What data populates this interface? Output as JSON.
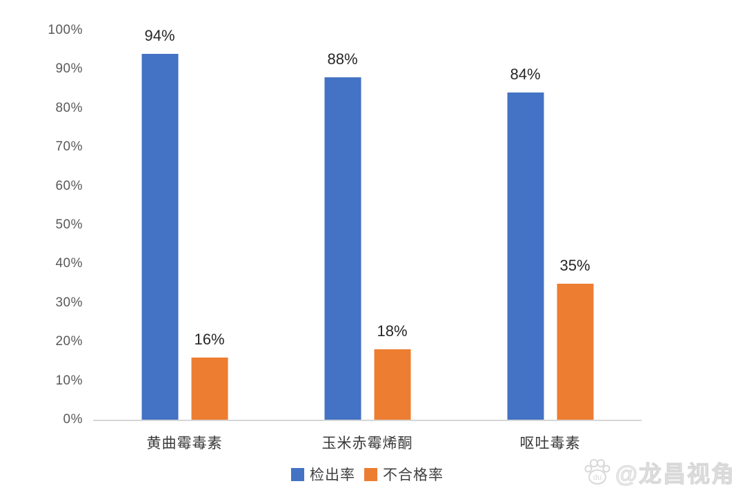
{
  "chart_data": {
    "type": "bar",
    "title": "",
    "xlabel": "",
    "ylabel": "",
    "categories": [
      "黄曲霉毒素",
      "玉米赤霉烯酮",
      "呕吐毒素"
    ],
    "series": [
      {
        "name": "检出率",
        "color": "#4472C4",
        "values": [
          94,
          88,
          84
        ]
      },
      {
        "name": "不合格率",
        "color": "#ED7D31",
        "values": [
          16,
          18,
          35
        ]
      }
    ],
    "value_label_format": "percent",
    "ylim": [
      0,
      100
    ],
    "y_ticks": [
      "0%",
      "10%",
      "20%",
      "30%",
      "40%",
      "50%",
      "60%",
      "70%",
      "80%",
      "90%",
      "100%"
    ],
    "grid": false,
    "legend_position": "bottom"
  },
  "watermark": {
    "icon": "baidu-paw-icon",
    "icon_text": "du",
    "text": "@龙昌视角"
  }
}
